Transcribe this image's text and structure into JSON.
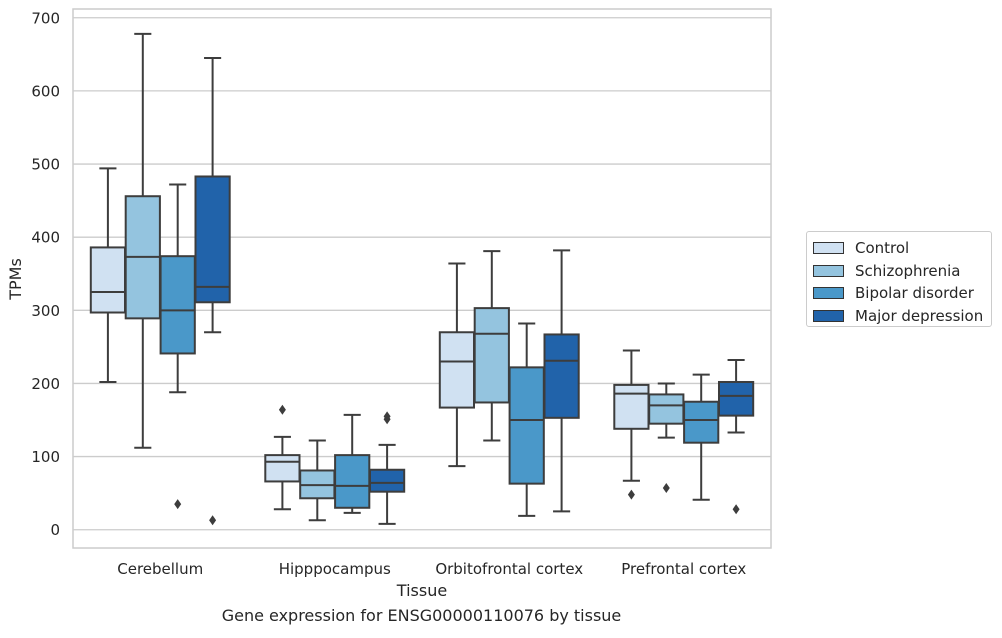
{
  "chart_data": {
    "type": "boxplot",
    "xlabel": "Tissue",
    "ylabel": "TPMs",
    "ylim": [
      -25,
      712
    ],
    "yticks": [
      0,
      100,
      200,
      300,
      400,
      500,
      600,
      700
    ],
    "grid": true,
    "legend_position": "outside-right",
    "categories": [
      "Cerebellum",
      "Hipppocampus",
      "Orbitofrontal cortex",
      "Prefrontal cortex"
    ],
    "series": [
      {
        "name": "Control",
        "color": "#d0e1f2",
        "boxes": [
          {
            "whisker_low": 202,
            "q1": 297,
            "median": 325,
            "q3": 386,
            "whisker_high": 494,
            "outliers": []
          },
          {
            "whisker_low": 28,
            "q1": 66,
            "median": 93,
            "q3": 102,
            "whisker_high": 127,
            "outliers": [
              164
            ]
          },
          {
            "whisker_low": 87,
            "q1": 167,
            "median": 230,
            "q3": 270,
            "whisker_high": 364,
            "outliers": []
          },
          {
            "whisker_low": 67,
            "q1": 138,
            "median": 186,
            "q3": 198,
            "whisker_high": 245,
            "outliers": [
              48
            ]
          }
        ]
      },
      {
        "name": "Schizophrenia",
        "color": "#94c4df",
        "boxes": [
          {
            "whisker_low": 112,
            "q1": 289,
            "median": 373,
            "q3": 456,
            "whisker_high": 678,
            "outliers": []
          },
          {
            "whisker_low": 13,
            "q1": 43,
            "median": 61,
            "q3": 81,
            "whisker_high": 122,
            "outliers": []
          },
          {
            "whisker_low": 122,
            "q1": 174,
            "median": 268,
            "q3": 303,
            "whisker_high": 381,
            "outliers": []
          },
          {
            "whisker_low": 126,
            "q1": 145,
            "median": 170,
            "q3": 185,
            "whisker_high": 200,
            "outliers": [
              57
            ]
          }
        ]
      },
      {
        "name": "Bipolar disorder",
        "color": "#4a98c9",
        "boxes": [
          {
            "whisker_low": 188,
            "q1": 241,
            "median": 300,
            "q3": 374,
            "whisker_high": 472,
            "outliers": [
              35
            ]
          },
          {
            "whisker_low": 23,
            "q1": 30,
            "median": 60,
            "q3": 102,
            "whisker_high": 157,
            "outliers": []
          },
          {
            "whisker_low": 19,
            "q1": 63,
            "median": 150,
            "q3": 222,
            "whisker_high": 282,
            "outliers": []
          },
          {
            "whisker_low": 41,
            "q1": 119,
            "median": 150,
            "q3": 175,
            "whisker_high": 212,
            "outliers": []
          }
        ]
      },
      {
        "name": "Major depression",
        "color": "#2163aa",
        "boxes": [
          {
            "whisker_low": 270,
            "q1": 311,
            "median": 332,
            "q3": 483,
            "whisker_high": 645,
            "outliers": [
              13
            ]
          },
          {
            "whisker_low": 8,
            "q1": 52,
            "median": 64,
            "q3": 82,
            "whisker_high": 116,
            "outliers": [
              151,
              155
            ]
          },
          {
            "whisker_low": 25,
            "q1": 153,
            "median": 231,
            "q3": 267,
            "whisker_high": 382,
            "outliers": []
          },
          {
            "whisker_low": 133,
            "q1": 156,
            "median": 183,
            "q3": 202,
            "whisker_high": 232,
            "outliers": [
              28
            ]
          }
        ]
      }
    ]
  },
  "caption": "Gene expression for ENSG00000110076 by tissue",
  "colors": {
    "grid": "#cccccc",
    "box_edge": "#3d3d3d",
    "whisker": "#3d3d3d",
    "text": "#262626"
  }
}
